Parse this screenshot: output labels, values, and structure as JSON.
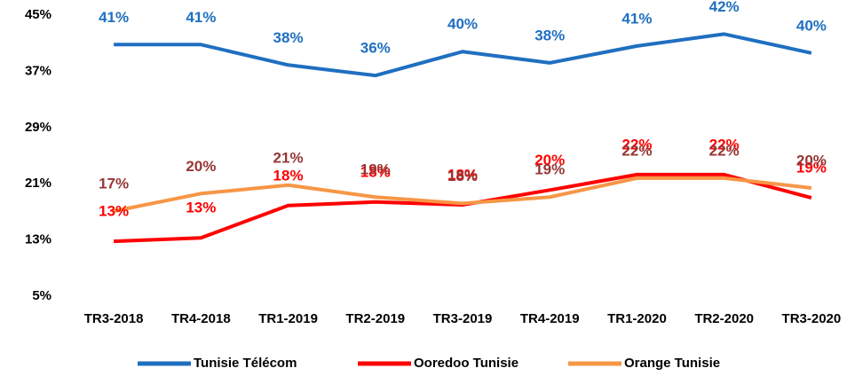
{
  "chart_data": {
    "type": "line",
    "categories": [
      "TR3-2018",
      "TR4-2018",
      "TR1-2019",
      "TR2-2019",
      "TR3-2019",
      "TR4-2019",
      "TR1-2020",
      "TR2-2020",
      "TR3-2020"
    ],
    "series": [
      {
        "name": "Tunisie Télécom",
        "color": "#1f6fc0",
        "label_color": "#1f6fc0",
        "values": [
          40.8,
          40.8,
          37.9,
          36.4,
          39.8,
          38.2,
          40.6,
          42.3,
          39.6
        ],
        "value_labels": [
          "41%",
          "41%",
          "38%",
          "36%",
          "40%",
          "38%",
          "41%",
          "42%",
          "40%"
        ]
      },
      {
        "name": "Ooredoo Tunisie",
        "color": "#ff0000",
        "label_color": "#ff0000",
        "values": [
          12.8,
          13.3,
          17.9,
          18.4,
          18.0,
          20.1,
          22.3,
          22.3,
          19.0
        ],
        "value_labels": [
          "13%",
          "13%",
          "18%",
          "18%",
          "18%",
          "20%",
          "22%",
          "22%",
          "19%"
        ]
      },
      {
        "name": "Orange Tunisie",
        "color": "#f79646",
        "label_color": "#953735",
        "values": [
          17.1,
          19.6,
          20.8,
          19.1,
          18.2,
          19.1,
          21.8,
          21.8,
          20.4
        ],
        "value_labels": [
          "17%",
          "20%",
          "21%",
          "19%",
          "18%",
          "19%",
          "22%",
          "22%",
          "20%"
        ]
      }
    ],
    "ylim": [
      5,
      45
    ],
    "yticks": [
      {
        "value": 5,
        "label": "5%"
      },
      {
        "value": 13,
        "label": "13%"
      },
      {
        "value": 21,
        "label": "21%"
      },
      {
        "value": 29,
        "label": "29%"
      },
      {
        "value": 37,
        "label": "37%"
      },
      {
        "value": 45,
        "label": "45%"
      }
    ],
    "grid": false,
    "legend": "bottom"
  }
}
